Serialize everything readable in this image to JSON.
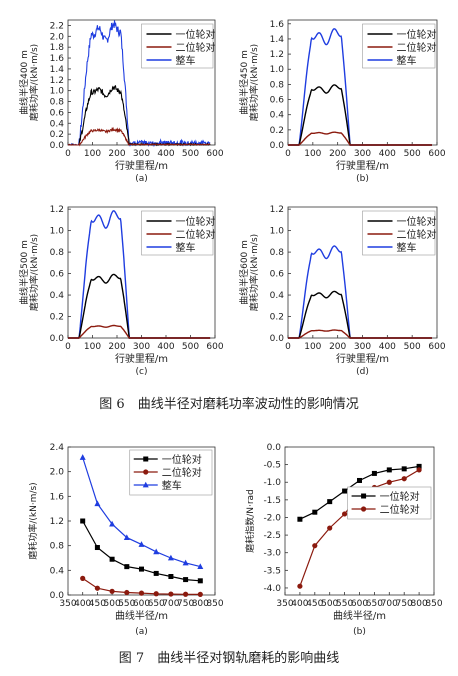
{
  "figure6_caption": "图 6　曲线半径对磨耗功率波动性的影响情况",
  "figure7_caption": "图 7　曲线半径对钢轨磨耗的影响曲线",
  "colors": {
    "first": "#000000",
    "second": "#8b1a0e",
    "whole": "#1f3de0"
  },
  "chart_data": [
    {
      "type": "area",
      "panel": "(a)",
      "ylabel": [
        "曲线半径400 m",
        "磨耗功率/(kN·m/s)"
      ],
      "xlabel": "行驶里程/m",
      "xticks": [
        0,
        100,
        200,
        300,
        400,
        500,
        600
      ],
      "yticks": [
        0.0,
        0.2,
        0.4,
        0.6,
        0.8,
        1.0,
        1.2,
        1.4,
        1.6,
        1.8,
        2.0,
        2.2
      ],
      "xlim": [
        0,
        600
      ],
      "ylim": [
        0,
        2.3
      ],
      "legend": [
        "一位轮对",
        "二位轮对",
        "整车"
      ],
      "legend_position": "top-right",
      "plateau": [
        1.0,
        0.27,
        2.1
      ],
      "noisy": true
    },
    {
      "type": "area",
      "panel": "(b)",
      "ylabel": [
        "曲线半径450 m",
        "磨耗功率/(kN·m/s)"
      ],
      "xlabel": "行驶里程/m",
      "xticks": [
        0,
        100,
        200,
        300,
        400,
        500,
        600
      ],
      "yticks": [
        0.0,
        0.2,
        0.4,
        0.6,
        0.8,
        1.0,
        1.2,
        1.4,
        1.6
      ],
      "xlim": [
        0,
        600
      ],
      "ylim": [
        0,
        1.65
      ],
      "legend": [
        "一位轮对",
        "二位轮对",
        "整车"
      ],
      "legend_position": "top-right",
      "plateau": [
        0.75,
        0.16,
        1.45
      ],
      "noisy": false
    },
    {
      "type": "area",
      "panel": "(c)",
      "ylabel": [
        "曲线半径500 m",
        "磨耗功率/(kN·m/s)"
      ],
      "xlabel": "行驶里程/m",
      "xticks": [
        0,
        100,
        200,
        300,
        400,
        500,
        600
      ],
      "yticks": [
        0.0,
        0.2,
        0.4,
        0.6,
        0.8,
        1.0,
        1.2
      ],
      "xlim": [
        0,
        600
      ],
      "ylim": [
        0,
        1.22
      ],
      "legend": [
        "一位轮对",
        "二位轮对",
        "整车"
      ],
      "legend_position": "top-right",
      "plateau": [
        0.56,
        0.11,
        1.12
      ],
      "noisy": false
    },
    {
      "type": "area",
      "panel": "(d)",
      "ylabel": [
        "曲线半径600 m",
        "磨耗功率/(kN·m/s)"
      ],
      "xlabel": "行驶里程/m",
      "xticks": [
        0,
        100,
        200,
        300,
        400,
        500,
        600
      ],
      "yticks": [
        0.0,
        0.2,
        0.4,
        0.6,
        0.8,
        1.0,
        1.2
      ],
      "xlim": [
        0,
        600
      ],
      "ylim": [
        0,
        1.22
      ],
      "legend": [
        "一位轮对",
        "二位轮对",
        "整车"
      ],
      "legend_position": "top-right",
      "plateau": [
        0.41,
        0.07,
        0.81
      ],
      "noisy": false
    },
    {
      "type": "line",
      "panel": "(a)",
      "ylabel": "磨耗功率/(kN·m/s)",
      "xlabel": "曲线半径/m",
      "xticks": [
        350,
        400,
        450,
        500,
        550,
        600,
        650,
        700,
        750,
        800,
        850
      ],
      "yticks": [
        0.0,
        0.4,
        0.8,
        1.2,
        1.6,
        2.0,
        2.4
      ],
      "xlim": [
        350,
        850
      ],
      "ylim": [
        0,
        2.4
      ],
      "x": [
        400,
        450,
        500,
        550,
        600,
        650,
        700,
        750,
        800
      ],
      "series": [
        {
          "name": "一位轮对",
          "marker": "square",
          "values": [
            1.2,
            0.77,
            0.58,
            0.46,
            0.42,
            0.35,
            0.3,
            0.25,
            0.23
          ]
        },
        {
          "name": "二位轮对",
          "marker": "circle",
          "values": [
            0.27,
            0.11,
            0.06,
            0.04,
            0.03,
            0.02,
            0.015,
            0.012,
            0.01
          ]
        },
        {
          "name": "整车",
          "marker": "triangle",
          "values": [
            2.23,
            1.48,
            1.15,
            0.93,
            0.82,
            0.7,
            0.6,
            0.52,
            0.46
          ]
        }
      ],
      "legend_position": "top-right"
    },
    {
      "type": "line",
      "panel": "(b)",
      "ylabel": "磨耗指数/N·rad",
      "xlabel": "曲线半径/m",
      "xticks": [
        350,
        400,
        450,
        500,
        550,
        600,
        650,
        700,
        750,
        800,
        850
      ],
      "yticks": [
        0.0,
        -0.5,
        -1.0,
        -1.5,
        -2.0,
        -2.5,
        -3.0,
        -3.5,
        -4.0
      ],
      "xlim": [
        350,
        850
      ],
      "ylim": [
        -4.2,
        0
      ],
      "x": [
        400,
        450,
        500,
        550,
        600,
        650,
        700,
        750,
        800
      ],
      "series": [
        {
          "name": "一位轮对",
          "marker": "square",
          "values": [
            -2.05,
            -1.85,
            -1.55,
            -1.25,
            -0.95,
            -0.75,
            -0.65,
            -0.62,
            -0.55
          ]
        },
        {
          "name": "二位轮对",
          "marker": "circle",
          "values": [
            -3.95,
            -2.8,
            -2.3,
            -1.9,
            -1.35,
            -1.15,
            -1.0,
            -0.9,
            -0.65
          ]
        }
      ],
      "legend_position": "middle-right"
    }
  ]
}
